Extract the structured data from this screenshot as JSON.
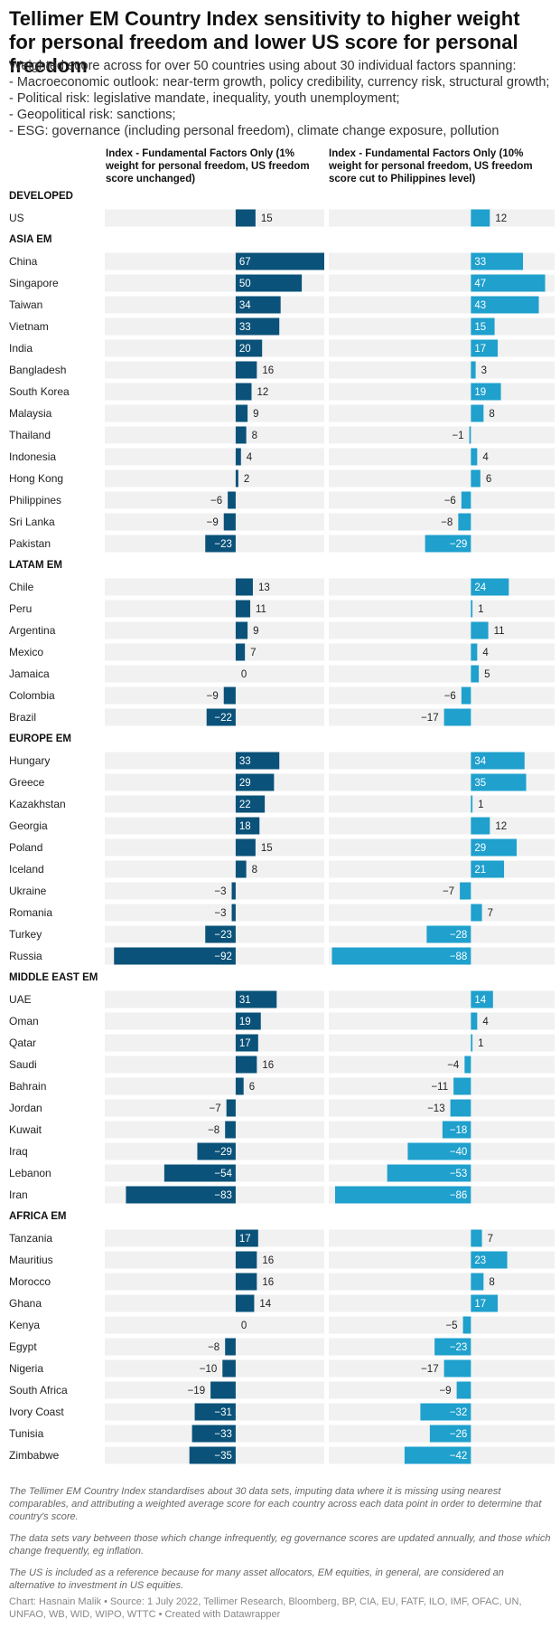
{
  "title": "Tellimer EM Country Index sensitivity to higher weight for personal freedom and lower US score for personal freedom",
  "subtitle": [
    "Weighted score across for over 50 countries using about 30 individual factors spanning:",
    "- Macroeconomic outlook: near-term growth, policy credibility, currency risk, structural growth;",
    "- Political risk: legislative mandate, inequality, youth unemployment;",
    "- Geopolitical risk: sanctions;",
    "- ESG: governance (including personal freedom), climate change exposure, pollution"
  ],
  "colors": {
    "series1": "#0a5279",
    "series2": "#1fa0cd",
    "row_bg": "#f1f1f1"
  },
  "notes": [
    "The Tellimer EM Country Index standardises about 30 data sets, imputing data where it is missing using nearest comparables, and attributing a weighted average score for each country across each data point in order to determine that country's score.",
    "The data sets vary between those which change infrequently, eg governance scores are updated annually, and those which change frequently, eg inflation.",
    "The US is included as a reference because for many asset allocators, EM equities, in general, are considered an alternative to investment in US equities."
  ],
  "credit": "Chart: Hasnain Malik • Source: 1 July 2022, Tellimer Research, Bloomberg, BP, CIA, EU, FATF, ILO, IMF, OFAC, UN, UNFAO, WB, WID, WIPO, WTTC • Created with Datawrapper",
  "chart_data": {
    "type": "bar",
    "orientation": "horizontal",
    "series": [
      {
        "name": "Index - Fundamental Factors Only (1% weight for personal freedom, US freedom score unchanged)",
        "color": "#0a5279",
        "domain": [
          -99,
          67
        ]
      },
      {
        "name": "Index - Fundamental Factors Only (10% weight for personal freedom, US freedom score cut to Philippines level)",
        "color": "#1fa0cd",
        "domain": [
          -90,
          53
        ]
      }
    ],
    "groups": [
      {
        "name": "DEVELOPED",
        "rows": [
          [
            "US",
            15,
            12
          ]
        ]
      },
      {
        "name": "ASIA EM",
        "rows": [
          [
            "China",
            67,
            33
          ],
          [
            "Singapore",
            50,
            47
          ],
          [
            "Taiwan",
            34,
            43
          ],
          [
            "Vietnam",
            33,
            15
          ],
          [
            "India",
            20,
            17
          ],
          [
            "Bangladesh",
            16,
            3
          ],
          [
            "South Korea",
            12,
            19
          ],
          [
            "Malaysia",
            9,
            8
          ],
          [
            "Thailand",
            8,
            -1
          ],
          [
            "Indonesia",
            4,
            4
          ],
          [
            "Hong Kong",
            2,
            6
          ],
          [
            "Philippines",
            -6,
            -6
          ],
          [
            "Sri Lanka",
            -9,
            -8
          ],
          [
            "Pakistan",
            -23,
            -29
          ]
        ]
      },
      {
        "name": "LATAM EM",
        "rows": [
          [
            "Chile",
            13,
            24
          ],
          [
            "Peru",
            11,
            1
          ],
          [
            "Argentina",
            9,
            11
          ],
          [
            "Mexico",
            7,
            4
          ],
          [
            "Jamaica",
            0,
            5
          ],
          [
            "Colombia",
            -9,
            -6
          ],
          [
            "Brazil",
            -22,
            -17
          ]
        ]
      },
      {
        "name": "EUROPE EM",
        "rows": [
          [
            "Hungary",
            33,
            34
          ],
          [
            "Greece",
            29,
            35
          ],
          [
            "Kazakhstan",
            22,
            1
          ],
          [
            "Georgia",
            18,
            12
          ],
          [
            "Poland",
            15,
            29
          ],
          [
            "Iceland",
            8,
            21
          ],
          [
            "Ukraine",
            -3,
            -7
          ],
          [
            "Romania",
            -3,
            7
          ],
          [
            "Turkey",
            -23,
            -28
          ],
          [
            "Russia",
            -92,
            -88
          ]
        ]
      },
      {
        "name": "MIDDLE EAST EM",
        "rows": [
          [
            "UAE",
            31,
            14
          ],
          [
            "Oman",
            19,
            4
          ],
          [
            "Qatar",
            17,
            1
          ],
          [
            "Saudi",
            16,
            -4
          ],
          [
            "Bahrain",
            6,
            -11
          ],
          [
            "Jordan",
            -7,
            -13
          ],
          [
            "Kuwait",
            -8,
            -18
          ],
          [
            "Iraq",
            -29,
            -40
          ],
          [
            "Lebanon",
            -54,
            -53
          ],
          [
            "Iran",
            -83,
            -86
          ]
        ]
      },
      {
        "name": "AFRICA EM",
        "rows": [
          [
            "Tanzania",
            17,
            7
          ],
          [
            "Mauritius",
            16,
            23
          ],
          [
            "Morocco",
            16,
            8
          ],
          [
            "Ghana",
            14,
            17
          ],
          [
            "Kenya",
            0,
            -5
          ],
          [
            "Egypt",
            -8,
            -23
          ],
          [
            "Nigeria",
            -10,
            -17
          ],
          [
            "South Africa",
            -19,
            -9
          ],
          [
            "Ivory Coast",
            -31,
            -32
          ],
          [
            "Tunisia",
            -33,
            -26
          ],
          [
            "Zimbabwe",
            -35,
            -42
          ]
        ]
      }
    ]
  }
}
